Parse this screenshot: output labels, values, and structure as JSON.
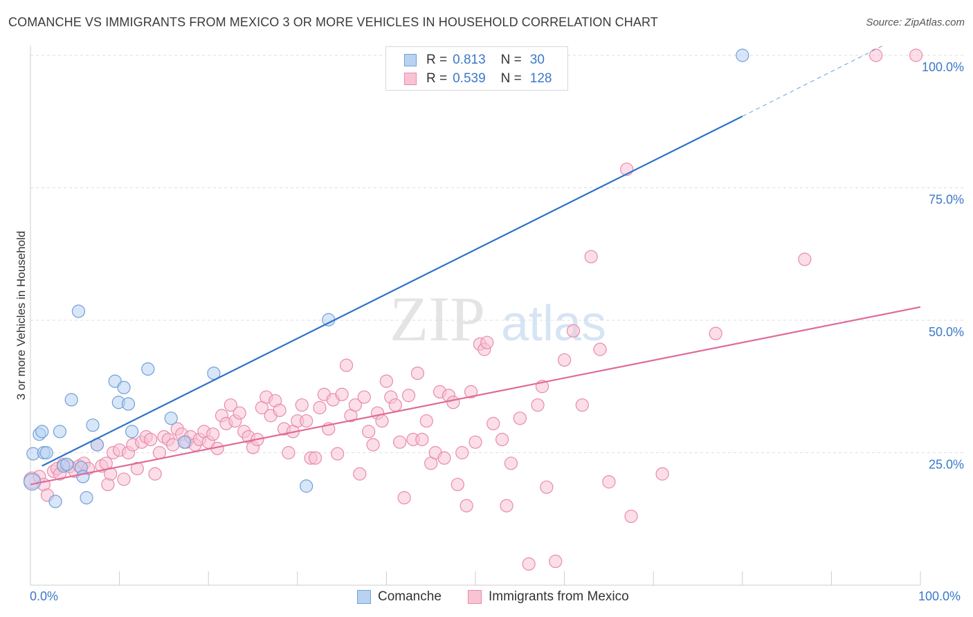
{
  "header": {
    "title": "COMANCHE VS IMMIGRANTS FROM MEXICO 3 OR MORE VEHICLES IN HOUSEHOLD CORRELATION CHART",
    "source": "Source: ZipAtlas.com"
  },
  "watermark": {
    "zip": "ZIP",
    "atlas": "atlas"
  },
  "legend": {
    "r_label": "R =",
    "n_label": "N =",
    "rows": [
      {
        "r": "0.813",
        "n": "30"
      },
      {
        "r": "0.539",
        "n": "128"
      }
    ]
  },
  "colors": {
    "comanche_fill": "#b8d2f2",
    "comanche_stroke": "#6f9fd8",
    "comanche_line": "#2f72c8",
    "mexico_fill": "#f8c3d3",
    "mexico_stroke": "#e88aaa",
    "mexico_line": "#e0699a",
    "tick_text": "#3a78c9",
    "grid": "#dddddd"
  },
  "chart_data": {
    "type": "scatter",
    "ylabel": "3 or more Vehicles in Household",
    "xlim": [
      0,
      100
    ],
    "ylim": [
      0,
      100
    ],
    "x_tick_labels": [
      "0.0%",
      "100.0%"
    ],
    "y_ticks": [
      25,
      50,
      75,
      100
    ],
    "y_tick_labels": [
      "25.0%",
      "50.0%",
      "75.0%",
      "100.0%"
    ],
    "grid": true,
    "series": [
      {
        "name": "Comanche",
        "points": [
          [
            0.2,
            19.5
          ],
          [
            0.3,
            24.8
          ],
          [
            1,
            28.5
          ],
          [
            1.3,
            29
          ],
          [
            1.5,
            25
          ],
          [
            1.8,
            25
          ],
          [
            2.8,
            15.8
          ],
          [
            3.3,
            29
          ],
          [
            3.7,
            22.5
          ],
          [
            4.1,
            22.8
          ],
          [
            4.6,
            35
          ],
          [
            5.4,
            51.7
          ],
          [
            5.7,
            22.2
          ],
          [
            5.9,
            20.5
          ],
          [
            6.3,
            16.5
          ],
          [
            7,
            30.2
          ],
          [
            7.5,
            26.5
          ],
          [
            9.5,
            38.5
          ],
          [
            9.9,
            34.5
          ],
          [
            10.5,
            37.3
          ],
          [
            11,
            34.2
          ],
          [
            11.4,
            29
          ],
          [
            13.2,
            40.8
          ],
          [
            15.8,
            31.5
          ],
          [
            17.3,
            27
          ],
          [
            20.6,
            40
          ],
          [
            31,
            18.7
          ],
          [
            33.5,
            50.1
          ],
          [
            80,
            100
          ]
        ],
        "trend": {
          "x0": 1.3,
          "y0": 22.5,
          "x1": 80,
          "y1": 88.5,
          "dash_to_x": 96,
          "dash_to_y": 102
        }
      },
      {
        "name": "Immigrants from Mexico",
        "points": [
          [
            0.2,
            19.8
          ],
          [
            1,
            20.5
          ],
          [
            1.5,
            19
          ],
          [
            1.9,
            17
          ],
          [
            2.6,
            21.5
          ],
          [
            3,
            22
          ],
          [
            3.3,
            21
          ],
          [
            3.7,
            22.8
          ],
          [
            4.4,
            22.4
          ],
          [
            5,
            21.5
          ],
          [
            5.5,
            22.5
          ],
          [
            6,
            23
          ],
          [
            6.5,
            22
          ],
          [
            7.5,
            26.5
          ],
          [
            8,
            22.5
          ],
          [
            8.5,
            23
          ],
          [
            8.7,
            19
          ],
          [
            9,
            21
          ],
          [
            9.3,
            25
          ],
          [
            10,
            25.5
          ],
          [
            10.5,
            20
          ],
          [
            11,
            25
          ],
          [
            11.5,
            26.5
          ],
          [
            12,
            22
          ],
          [
            12.5,
            27
          ],
          [
            13,
            28
          ],
          [
            13.5,
            27.5
          ],
          [
            14,
            21
          ],
          [
            14.5,
            25
          ],
          [
            15,
            28
          ],
          [
            15.5,
            27.5
          ],
          [
            16,
            26.5
          ],
          [
            16.5,
            29.5
          ],
          [
            17,
            28.5
          ],
          [
            17.5,
            27
          ],
          [
            18,
            28
          ],
          [
            18.5,
            26.5
          ],
          [
            19,
            27.5
          ],
          [
            19.5,
            29
          ],
          [
            20,
            27
          ],
          [
            20.5,
            28.5
          ],
          [
            21,
            25.8
          ],
          [
            21.5,
            32
          ],
          [
            22,
            30.5
          ],
          [
            22.5,
            34
          ],
          [
            23,
            31
          ],
          [
            23.5,
            32.5
          ],
          [
            24,
            29
          ],
          [
            24.5,
            28
          ],
          [
            25,
            26
          ],
          [
            25.5,
            27.5
          ],
          [
            26,
            33.5
          ],
          [
            26.5,
            35.5
          ],
          [
            27,
            32
          ],
          [
            27.5,
            34.8
          ],
          [
            28,
            33
          ],
          [
            28.5,
            29.5
          ],
          [
            29,
            25
          ],
          [
            29.5,
            29
          ],
          [
            30,
            31
          ],
          [
            30.5,
            34
          ],
          [
            31,
            31
          ],
          [
            31.5,
            24
          ],
          [
            32,
            24
          ],
          [
            32.5,
            33.5
          ],
          [
            33,
            36
          ],
          [
            33.5,
            29.5
          ],
          [
            34,
            35
          ],
          [
            34.5,
            24.8
          ],
          [
            35,
            36
          ],
          [
            35.5,
            41.5
          ],
          [
            36,
            32
          ],
          [
            36.5,
            34
          ],
          [
            37,
            21
          ],
          [
            37.5,
            35.5
          ],
          [
            38,
            29
          ],
          [
            38.5,
            26.5
          ],
          [
            39,
            32.5
          ],
          [
            39.5,
            31
          ],
          [
            40,
            38.5
          ],
          [
            40.5,
            35.5
          ],
          [
            41,
            34
          ],
          [
            41.5,
            27
          ],
          [
            42,
            16.5
          ],
          [
            42.5,
            35.8
          ],
          [
            43,
            27.5
          ],
          [
            43.5,
            40
          ],
          [
            44,
            27.5
          ],
          [
            44.5,
            31
          ],
          [
            45,
            23
          ],
          [
            45.5,
            25
          ],
          [
            46,
            36.5
          ],
          [
            46.5,
            24
          ],
          [
            47,
            35.8
          ],
          [
            47.5,
            34.5
          ],
          [
            48,
            19
          ],
          [
            48.5,
            25
          ],
          [
            49,
            15
          ],
          [
            49.5,
            36.5
          ],
          [
            50,
            27
          ],
          [
            50.5,
            45.5
          ],
          [
            51,
            44.5
          ],
          [
            51.3,
            45.8
          ],
          [
            52,
            30.5
          ],
          [
            53,
            27.5
          ],
          [
            53.5,
            15
          ],
          [
            54,
            23
          ],
          [
            55,
            31.5
          ],
          [
            56,
            4
          ],
          [
            57,
            34
          ],
          [
            57.5,
            37.5
          ],
          [
            58,
            18.5
          ],
          [
            59,
            4.5
          ],
          [
            60,
            42.5
          ],
          [
            61,
            48
          ],
          [
            62,
            34
          ],
          [
            63,
            62
          ],
          [
            64,
            44.5
          ],
          [
            65,
            19.5
          ],
          [
            67,
            78.5
          ],
          [
            67.5,
            13
          ],
          [
            71,
            21
          ],
          [
            77,
            47.5
          ],
          [
            87,
            61.5
          ],
          [
            95,
            100
          ],
          [
            99.5,
            100
          ]
        ],
        "trend": {
          "x0": 0,
          "y0": 19,
          "x1": 100,
          "y1": 52.5
        }
      }
    ]
  }
}
